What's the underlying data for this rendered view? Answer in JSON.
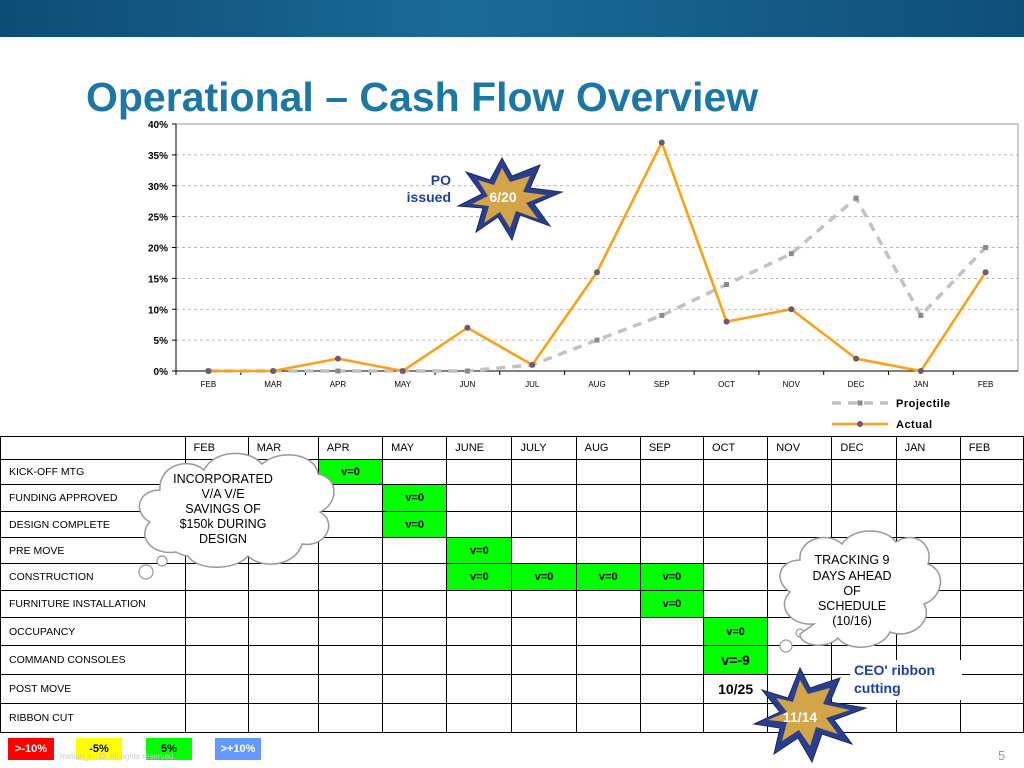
{
  "slide": {
    "title": "Operational – Cash Flow Overview",
    "page_number": "5",
    "footer_text": "mation_r...                    D. All rights reserved.",
    "colors": {
      "bar": "#0d4c74",
      "title": "#1d77a3",
      "actual": "#f7a21b",
      "projectile": "#c2c2c2",
      "green": "#00ff00"
    }
  },
  "chart_data": {
    "type": "line",
    "categories": [
      "FEB",
      "MAR",
      "APR",
      "MAY",
      "JUN",
      "JUL",
      "AUG",
      "SEP",
      "OCT",
      "NOV",
      "DEC",
      "JAN",
      "FEB"
    ],
    "y_ticks": [
      "0%",
      "5%",
      "10%",
      "15%",
      "20%",
      "25%",
      "30%",
      "35%",
      "40%"
    ],
    "ylim": [
      0,
      40
    ],
    "grid": true,
    "legend_position": "bottom-right",
    "series": [
      {
        "name": "Projectile",
        "style": "dashed",
        "color": "#c2c2c2",
        "values": [
          0,
          0,
          0,
          0,
          0,
          1,
          5,
          9,
          14,
          19,
          28,
          9,
          20
        ]
      },
      {
        "name": "Actual",
        "style": "solid",
        "color": "#f7a21b",
        "values": [
          0,
          0,
          2,
          0,
          7,
          1,
          16,
          37,
          8,
          10,
          2,
          0,
          16
        ]
      }
    ]
  },
  "annotations": {
    "po_note": [
      "PO",
      "issued"
    ],
    "po_burst": "6/20",
    "cloud_left": [
      "INCORPORATED",
      "V/A V/E",
      "SAVINGS OF",
      "$150k DURING",
      "DESIGN"
    ],
    "cloud_right": [
      "TRACKING 9",
      "DAYS AHEAD",
      "OF",
      "SCHEDULE",
      "(10/16)"
    ],
    "ceo_note": [
      "CEO' ribbon",
      "cutting"
    ],
    "ribbon_burst": "11/14"
  },
  "schedule": {
    "months": [
      "FEB",
      "MAR",
      "APR",
      "MAY",
      "JUNE",
      "JULY",
      "AUG",
      "SEP",
      "OCT",
      "NOV",
      "DEC",
      "JAN",
      "FEB"
    ],
    "rows": [
      {
        "task": "KICK-OFF MTG",
        "cells": [
          "",
          "",
          "v=0",
          "",
          "",
          "",
          "",
          "",
          "",
          "",
          "",
          "",
          ""
        ]
      },
      {
        "task": "FUNDING APPROVED",
        "cells": [
          "",
          "",
          "",
          "v=0",
          "",
          "",
          "",
          "",
          "",
          "",
          "",
          "",
          ""
        ]
      },
      {
        "task": "DESIGN COMPLETE",
        "cells": [
          "",
          "",
          "",
          "v=0",
          "",
          "",
          "",
          "",
          "",
          "",
          "",
          "",
          ""
        ]
      },
      {
        "task": "PRE MOVE",
        "cells": [
          "",
          "",
          "",
          "",
          "v=0",
          "",
          "",
          "",
          "",
          "",
          "",
          "",
          ""
        ]
      },
      {
        "task": "CONSTRUCTION",
        "cells": [
          "",
          "",
          "",
          "",
          "v=0",
          "v=0",
          "v=0",
          "v=0",
          "",
          "",
          "",
          "",
          ""
        ]
      },
      {
        "task": "FURNITURE INSTALLATION",
        "cells": [
          "",
          "",
          "",
          "",
          "",
          "",
          "",
          "v=0",
          "",
          "",
          "",
          "",
          ""
        ]
      },
      {
        "task": "OCCUPANCY",
        "cells": [
          "",
          "",
          "",
          "",
          "",
          "",
          "",
          "",
          "v=0",
          "",
          "",
          "",
          ""
        ]
      },
      {
        "task": "COMMAND CONSOLES",
        "cells": [
          "",
          "",
          "",
          "",
          "",
          "",
          "",
          "",
          "v=-9",
          "",
          "",
          "",
          ""
        ]
      },
      {
        "task": "POST MOVE",
        "cells": [
          "",
          "",
          "",
          "",
          "",
          "",
          "",
          "",
          "10/25",
          "",
          "",
          "",
          ""
        ]
      },
      {
        "task": "RIBBON CUT",
        "cells": [
          "",
          "",
          "",
          "",
          "",
          "",
          "",
          "",
          "",
          "",
          "",
          "",
          ""
        ]
      }
    ]
  },
  "status_legend": [
    {
      "label": ">-10%",
      "color": "#ff0000",
      "text_color": "#ffffff"
    },
    {
      "label": "-5%",
      "color": "#ffff00",
      "text_color": "#000000"
    },
    {
      "label": "5%",
      "color": "#00ff00",
      "text_color": "#000000"
    },
    {
      "label": ">+10%",
      "color": "#6699ff",
      "text_color": "#ffffff"
    }
  ]
}
